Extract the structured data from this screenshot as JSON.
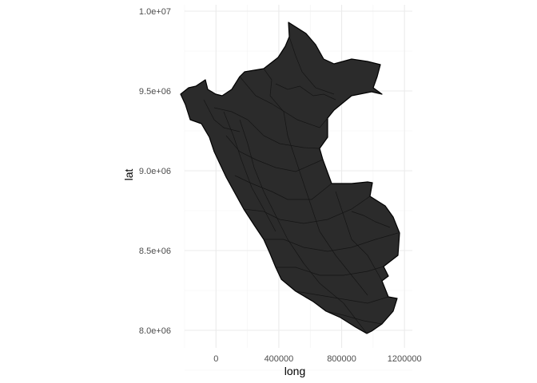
{
  "chart_data": {
    "type": "map",
    "region": "Peru",
    "xlabel": "long",
    "ylabel": "lat",
    "x_ticks": [
      0,
      400000,
      800000,
      1200000
    ],
    "x_tick_labels": [
      "0",
      "400000",
      "800000",
      "1200000"
    ],
    "y_ticks": [
      8000000,
      8500000,
      9000000,
      9500000,
      10000000
    ],
    "y_tick_labels": [
      "8.0e+06",
      "8.5e+06",
      "9.0e+06",
      "9.5e+06",
      "1.0e+07"
    ],
    "xlim": [
      -200000,
      1250000
    ],
    "ylim": [
      7890000,
      10040000
    ],
    "grid": true,
    "fill_color": "#333333",
    "border_color": "#000000"
  }
}
